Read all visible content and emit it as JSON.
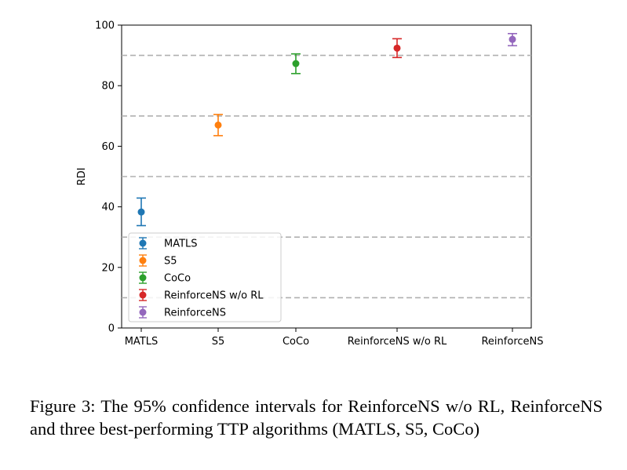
{
  "chart_data": {
    "type": "errorbar",
    "ylabel": "RDI",
    "ylim": [
      0,
      100
    ],
    "yticks": [
      0,
      20,
      40,
      60,
      80,
      100
    ],
    "dashed_lines": [
      10,
      30,
      50,
      70,
      90
    ],
    "categories": [
      "MATLS",
      "S5",
      "CoCo",
      "ReinforceNS w/o RL",
      "ReinforceNS"
    ],
    "series": [
      {
        "name": "MATLS",
        "color": "#1f77b4",
        "value": 38.3,
        "low": 33.8,
        "high": 42.9
      },
      {
        "name": "S5",
        "color": "#ff7f0e",
        "value": 67.0,
        "low": 63.5,
        "high": 70.5
      },
      {
        "name": "CoCo",
        "color": "#2ca02c",
        "value": 87.3,
        "low": 84.0,
        "high": 90.5
      },
      {
        "name": "ReinforceNS w/o RL",
        "color": "#d62728",
        "value": 92.4,
        "low": 89.3,
        "high": 95.5
      },
      {
        "name": "ReinforceNS",
        "color": "#9467bd",
        "value": 95.3,
        "low": 93.2,
        "high": 97.2
      }
    ],
    "legend_position": "lower-left"
  },
  "caption": "Figure 3: The 95% confidence intervals for ReinforceNS w/o RL, ReinforceNS and three best-performing TTP algorithms (MATLS, S5, CoCo)"
}
